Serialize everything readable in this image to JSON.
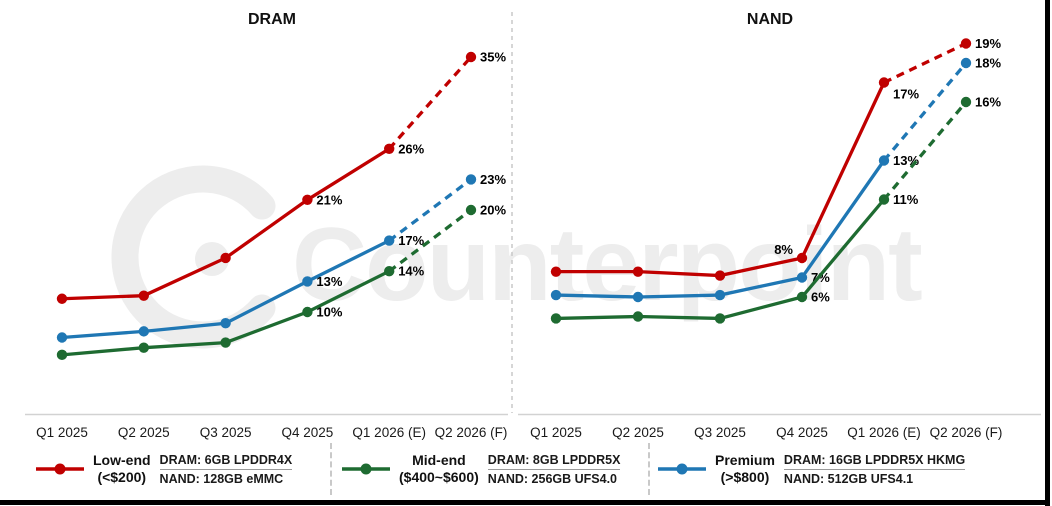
{
  "watermark": {
    "text": "Counterpoint",
    "color": "#EDEDED"
  },
  "chart_data": [
    {
      "type": "line",
      "title": "DRAM",
      "x": [
        "Q1 2025",
        "Q2 2025",
        "Q3 2025",
        "Q4 2025",
        "Q1 2026 (E)",
        "Q2 2026 (F)"
      ],
      "unit": "%",
      "ylim": [
        0,
        36
      ],
      "grid": false,
      "dash_from_index": 4,
      "series": [
        {
          "name": "Low-end (<$200)",
          "color": "#C00000",
          "values": [
            11.3,
            11.6,
            15.3,
            21,
            26,
            35
          ],
          "labels": [
            "",
            "",
            "",
            "21%",
            "26%",
            "35%"
          ]
        },
        {
          "name": "Premium (>$800)",
          "color": "#1F77B4",
          "values": [
            7.5,
            8.1,
            8.9,
            13,
            17,
            23
          ],
          "labels": [
            "",
            "",
            "",
            "13%",
            "17%",
            "23%"
          ]
        },
        {
          "name": "Mid-end ($400~$600)",
          "color": "#1E6B31",
          "values": [
            5.8,
            6.5,
            7.0,
            10,
            14,
            20
          ],
          "labels": [
            "",
            "",
            "",
            "10%",
            "14%",
            "20%"
          ]
        }
      ]
    },
    {
      "type": "line",
      "title": "NAND",
      "x": [
        "Q1 2025",
        "Q2 2025",
        "Q3 2025",
        "Q4 2025",
        "Q1 2026 (E)",
        "Q2 2026 (F)"
      ],
      "unit": "%",
      "ylim": [
        0,
        20
      ],
      "grid": false,
      "dash_from_index": 4,
      "series": [
        {
          "name": "Low-end (<$200)",
          "color": "#C00000",
          "values": [
            7.3,
            7.3,
            7.1,
            8,
            17,
            19
          ],
          "labels": [
            "",
            "",
            "",
            "8%",
            "17%",
            "19%"
          ],
          "label_offsets": {
            "3": [
              -9,
              -4
            ],
            "4": [
              9,
              16
            ]
          }
        },
        {
          "name": "Premium (>$800)",
          "color": "#1F77B4",
          "values": [
            6.1,
            6.0,
            6.1,
            7,
            13,
            18
          ],
          "labels": [
            "",
            "",
            "",
            "7%",
            "13%",
            "18%"
          ]
        },
        {
          "name": "Mid-end ($400~$600)",
          "color": "#1E6B31",
          "values": [
            4.9,
            5.0,
            4.9,
            6,
            11,
            16
          ],
          "labels": [
            "",
            "",
            "",
            "6%",
            "11%",
            "16%"
          ]
        }
      ]
    }
  ],
  "legend": {
    "items": [
      {
        "label_line1": "Low-end",
        "label_line2": "(<$200)",
        "color": "#C00000",
        "spec_dram": "DRAM: 6GB LPDDR4X",
        "spec_nand": "NAND: 128GB eMMC"
      },
      {
        "label_line1": "Mid-end",
        "label_line2": "($400~$600)",
        "color": "#1E6B31",
        "spec_dram": "DRAM: 8GB LPDDR5X",
        "spec_nand": "NAND: 256GB UFS4.0"
      },
      {
        "label_line1": "Premium",
        "label_line2": "(>$800)",
        "color": "#1F77B4",
        "spec_dram": "DRAM: 16GB LPDDR5X HKMG",
        "spec_nand": "NAND: 512GB UFS4.1"
      }
    ]
  }
}
